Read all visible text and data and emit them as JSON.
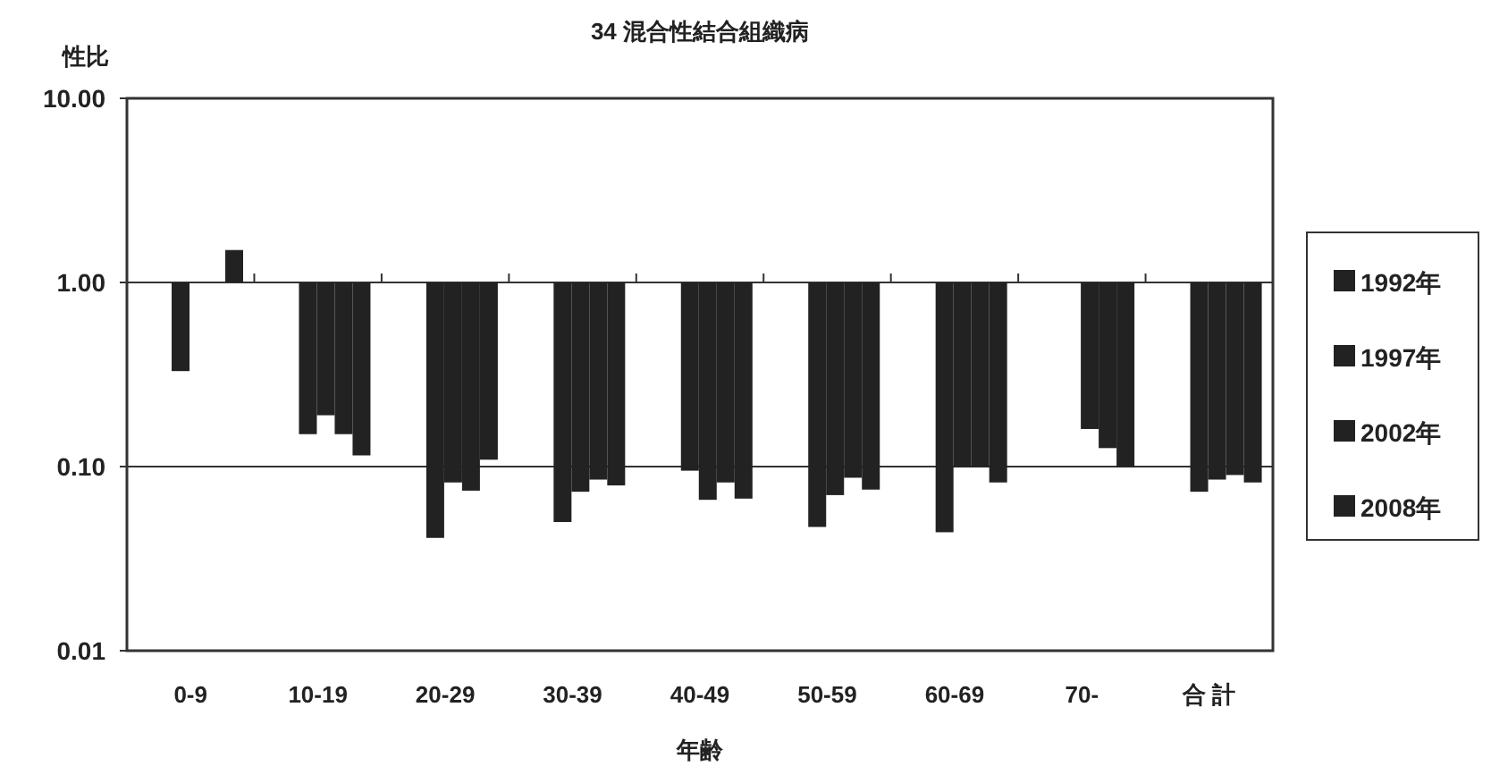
{
  "chart_data": {
    "type": "bar",
    "title": "34 混合性結合組織病",
    "ylabel": "性比",
    "xlabel": "年齢",
    "categories": [
      "0-9",
      "10-19",
      "20-29",
      "30-39",
      "40-49",
      "50-59",
      "60-69",
      "70-",
      "合 計"
    ],
    "series": [
      {
        "name": "1992年",
        "color": "#222222",
        "base": [
          1,
          1,
          1,
          1,
          1,
          1,
          1,
          null,
          1
        ],
        "values": [
          -0.67,
          -0.85,
          -0.959,
          -0.95,
          -0.905,
          -0.953,
          -0.956,
          null,
          -0.927
        ]
      },
      {
        "name": "1997年",
        "color": "#222222",
        "base": [
          null,
          1,
          1,
          1,
          1,
          1,
          1,
          1,
          1
        ],
        "values": [
          null,
          -0.81,
          -0.918,
          -0.927,
          -0.934,
          -0.93,
          -0.901,
          -0.84,
          -0.915
        ]
      },
      {
        "name": "2002年",
        "color": "#222222",
        "base": [
          null,
          1,
          1,
          1,
          1,
          1,
          1,
          1,
          1
        ],
        "values": [
          null,
          -0.85,
          -0.926,
          -0.915,
          -0.918,
          -0.913,
          -0.901,
          -0.874,
          -0.91
        ]
      },
      {
        "name": "2008年",
        "color": "#222222",
        "base": [
          1,
          1,
          1,
          1,
          1,
          1,
          1,
          1,
          1
        ],
        "values": [
          0.5,
          -0.885,
          -0.891,
          -0.921,
          -0.933,
          -0.925,
          -0.918,
          -0.901,
          -0.918
        ]
      }
    ],
    "log": "y",
    "ylim": [
      0.01,
      10
    ],
    "yticks": [
      {
        "value": 0.01,
        "label": "0.01"
      },
      {
        "value": 0.1,
        "label": "0.10"
      },
      {
        "value": 1,
        "label": "1.00"
      },
      {
        "value": 10,
        "label": "10.00"
      }
    ],
    "grid": "y",
    "legend": "right"
  }
}
